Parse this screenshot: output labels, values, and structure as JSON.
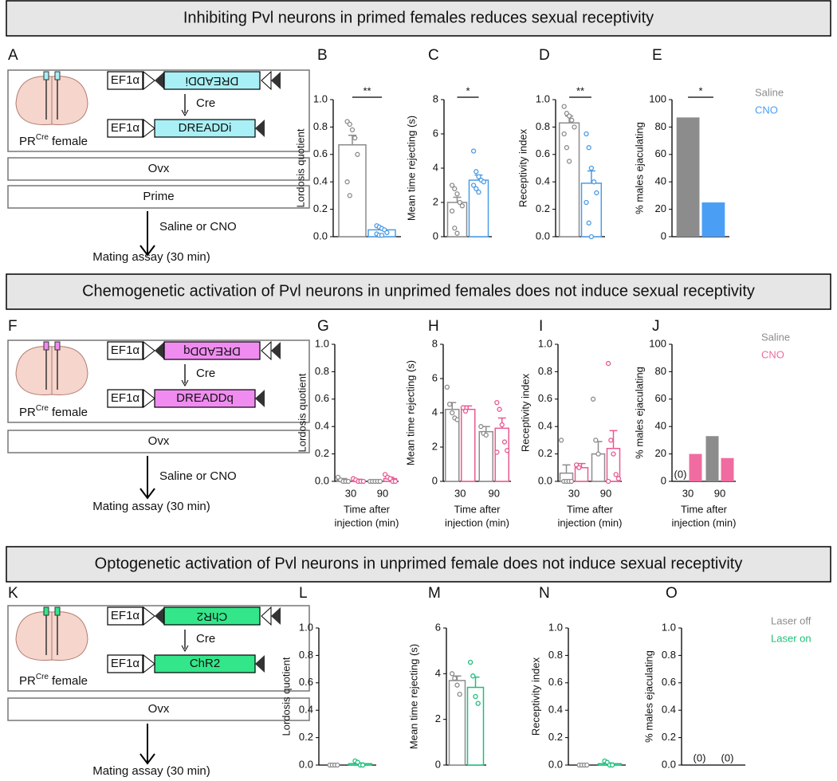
{
  "sections": [
    {
      "title": "Inhibiting Pvl neurons in primed females reduces sexual receptivity",
      "panel_labels": [
        "A",
        "B",
        "C",
        "D",
        "E"
      ],
      "schematic": {
        "promoter": "EF1α",
        "construct": "DREADDi",
        "color": "#a8f0f5",
        "recombinase": "Cre",
        "mouse": "PR",
        "mouse_sup": "Cre",
        "mouse_suffix": "female",
        "steps": [
          "Ovx",
          "Prime"
        ],
        "treatment": "Saline or CNO",
        "assay": "Mating assay (30 min)"
      }
    },
    {
      "title": "Chemogenetic activation of Pvl neurons in unprimed females does not induce sexual receptivity",
      "panel_labels": [
        "F",
        "G",
        "H",
        "I",
        "J"
      ],
      "schematic": {
        "promoter": "EF1α",
        "construct": "DREADDq",
        "color": "#f08cf0",
        "recombinase": "Cre",
        "mouse": "PR",
        "mouse_sup": "Cre",
        "mouse_suffix": "female",
        "steps": [
          "Ovx"
        ],
        "treatment": "Saline or CNO",
        "assay": "Mating assay (30 min)"
      }
    },
    {
      "title": "Optogenetic activation of Pvl neurons in unprimed female does not induce sexual receptivity",
      "panel_labels": [
        "K",
        "L",
        "M",
        "N",
        "O"
      ],
      "schematic": {
        "promoter": "EF1α",
        "construct": "ChR2",
        "color": "#33e68a",
        "recombinase": "Cre",
        "mouse": "PR",
        "mouse_sup": "Cre",
        "mouse_suffix": "female",
        "steps": [
          "Ovx"
        ],
        "assay": "Mating assay (30 min)"
      }
    }
  ],
  "chart_data": [
    {
      "type": "bar",
      "ylabel": "Lordosis quotient",
      "ylim": [
        0,
        1
      ],
      "yticks": [
        {
          "value": 0,
          "label": "0.0"
        },
        0.2,
        0.4,
        0.6,
        0.8,
        {
          "value": 1,
          "label": "1.0"
        }
      ],
      "bar_style": "outline",
      "significance": "**",
      "series": [
        {
          "color": "#8c8c8c",
          "values": [
            0.67
          ],
          "errors": [
            0.07
          ],
          "points": [
            [
              0.84,
              0.82,
              0.78,
              0.72,
              0.6,
              0.4,
              0.3
            ]
          ]
        },
        {
          "color": "#4d9be6",
          "values": [
            0.05
          ],
          "errors": [
            0.01
          ],
          "points": [
            [
              0.08,
              0.07,
              0.06,
              0.05,
              0.03,
              0.02,
              0.01,
              0.01
            ]
          ]
        }
      ]
    },
    {
      "type": "bar",
      "ylabel": "Mean time rejecting (s)",
      "ylim": [
        0,
        8
      ],
      "yticks": [
        0,
        2,
        4,
        6,
        8
      ],
      "bar_style": "outline",
      "significance": "*",
      "series": [
        {
          "color": "#8c8c8c",
          "values": [
            2.0
          ],
          "errors": [
            0.3
          ],
          "points": [
            [
              3.0,
              2.8,
              2.5,
              2.0,
              1.8,
              1.5,
              0.5,
              0.2
            ]
          ]
        },
        {
          "color": "#4d9be6",
          "values": [
            3.3
          ],
          "errors": [
            0.3
          ],
          "points": [
            [
              5.0,
              3.8,
              3.5,
              3.3,
              3.2,
              3.0,
              2.8,
              2.6
            ]
          ]
        }
      ]
    },
    {
      "type": "bar",
      "ylabel": "Receptivity index",
      "ylim": [
        0,
        1
      ],
      "yticks": [
        {
          "value": 0,
          "label": "0.0"
        },
        0.2,
        0.4,
        0.6,
        0.8,
        {
          "value": 1,
          "label": "1.0"
        }
      ],
      "bar_style": "outline",
      "significance": "**",
      "series": [
        {
          "color": "#8c8c8c",
          "values": [
            0.83
          ],
          "errors": [
            0.05
          ],
          "points": [
            [
              0.95,
              0.9,
              0.88,
              0.85,
              0.8,
              0.75,
              0.65,
              0.55
            ]
          ]
        },
        {
          "color": "#4d9be6",
          "values": [
            0.39
          ],
          "errors": [
            0.09
          ],
          "points": [
            [
              0.75,
              0.65,
              0.5,
              0.4,
              0.32,
              0.25,
              0.1,
              0.0
            ]
          ]
        }
      ]
    },
    {
      "type": "bar",
      "ylabel": "% males ejaculating",
      "ylim": [
        0,
        100
      ],
      "yticks": [
        0,
        20,
        40,
        60,
        80,
        100
      ],
      "bar_style": "filled",
      "significance": "*",
      "series": [
        {
          "name": "Saline",
          "color": "#8c8c8c",
          "values": [
            87
          ]
        },
        {
          "name": "CNO",
          "color": "#4a9ff5",
          "values": [
            25
          ]
        }
      ]
    },
    {
      "type": "bar",
      "ylabel": "Lordosis quotient",
      "ylim": [
        0,
        1
      ],
      "yticks": [
        {
          "value": 0,
          "label": "0.0"
        },
        0.2,
        0.4,
        0.6,
        0.8,
        {
          "value": 1,
          "label": "1.0"
        }
      ],
      "bar_style": "outline",
      "categories": [
        "30",
        "90"
      ],
      "xlabel": [
        "Time after",
        "injection (min)"
      ],
      "series": [
        {
          "color": "#8c8c8c",
          "values": [
            0.01,
            0.0
          ],
          "errors": [
            0.01,
            0
          ],
          "points": [
            [
              0.03,
              0.01,
              0,
              0,
              0
            ],
            [
              0,
              0,
              0,
              0,
              0
            ]
          ]
        },
        {
          "color": "#e85a92",
          "values": [
            0.01,
            0.02
          ],
          "errors": [
            0.005,
            0.01
          ],
          "points": [
            [
              0.02,
              0.01,
              0,
              0,
              0
            ],
            [
              0.05,
              0.03,
              0.02,
              0,
              0
            ]
          ]
        }
      ]
    },
    {
      "type": "bar",
      "ylabel": "Mean time rejecting (s)",
      "ylim": [
        0,
        8
      ],
      "yticks": [
        0,
        2,
        4,
        6,
        8
      ],
      "bar_style": "outline",
      "categories": [
        "30",
        "90"
      ],
      "xlabel": [
        "Time after",
        "injection (min)"
      ],
      "series": [
        {
          "color": "#8c8c8c",
          "values": [
            4.2,
            2.9
          ],
          "errors": [
            0.4,
            0.3
          ],
          "points": [
            [
              5.5,
              4.5,
              4.0,
              3.7,
              3.6
            ],
            [
              3.2,
              2.8,
              2.7
            ]
          ]
        },
        {
          "color": "#e85a92",
          "values": [
            4.2,
            3.1
          ],
          "errors": [
            0.2,
            0.6
          ],
          "points": [
            [
              4.3,
              4.1
            ],
            [
              4.6,
              4.2,
              3.3,
              2.3,
              1.8,
              1.7
            ]
          ]
        }
      ]
    },
    {
      "type": "bar",
      "ylabel": "Receptivity index",
      "ylim": [
        0,
        1
      ],
      "yticks": [
        {
          "value": 0,
          "label": "0.0"
        },
        0.2,
        0.4,
        0.6,
        0.8,
        {
          "value": 1,
          "label": "1.0"
        }
      ],
      "bar_style": "outline",
      "categories": [
        "30",
        "90"
      ],
      "xlabel": [
        "Time after",
        "injection (min)"
      ],
      "series": [
        {
          "color": "#8c8c8c",
          "values": [
            0.06,
            0.2
          ],
          "errors": [
            0.06,
            0.09
          ],
          "points": [
            [
              0.3,
              0,
              0,
              0,
              0
            ],
            [
              0.6,
              0.3,
              0.2
            ]
          ]
        },
        {
          "color": "#e85a92",
          "values": [
            0.1,
            0.24
          ],
          "errors": [
            0.03,
            0.13
          ],
          "points": [
            [
              0.12,
              0.1
            ],
            [
              0.86,
              0.3,
              0.2,
              0.05,
              0.02,
              0.0
            ]
          ]
        }
      ]
    },
    {
      "type": "bar",
      "ylabel": "% males ejaculating",
      "ylim": [
        0,
        100
      ],
      "yticks": [
        0,
        20,
        40,
        60,
        80,
        100
      ],
      "bar_style": "filled",
      "categories": [
        "30",
        "90"
      ],
      "xlabel": [
        "Time after",
        "injection (min)"
      ],
      "annotations": [
        "(0)"
      ],
      "series": [
        {
          "name": "Saline",
          "color": "#8c8c8c",
          "values": [
            0,
            33
          ]
        },
        {
          "name": "CNO",
          "color": "#f06ba0",
          "values": [
            20,
            17
          ]
        }
      ]
    },
    {
      "type": "bar",
      "ylabel": "Lordosis quotient",
      "ylim": [
        0,
        1
      ],
      "yticks": [
        {
          "value": 0,
          "label": "0.0"
        },
        0.2,
        0.4,
        0.6,
        0.8,
        {
          "value": 1,
          "label": "1.0"
        }
      ],
      "bar_style": "outline",
      "series": [
        {
          "color": "#8c8c8c",
          "values": [
            0.0
          ],
          "errors": [
            0
          ],
          "points": [
            [
              0,
              0,
              0,
              0
            ]
          ]
        },
        {
          "color": "#1fbf7a",
          "values": [
            0.01
          ],
          "errors": [
            0.005
          ],
          "points": [
            [
              0.03,
              0.02,
              0,
              0
            ]
          ]
        }
      ]
    },
    {
      "type": "bar",
      "ylabel": "Mean time rejecting (s)",
      "ylim": [
        0,
        6
      ],
      "yticks": [
        0,
        2,
        4,
        6
      ],
      "bar_style": "outline",
      "series": [
        {
          "color": "#8c8c8c",
          "values": [
            3.7
          ],
          "errors": [
            0.2
          ],
          "points": [
            [
              4.0,
              3.8,
              3.5,
              3.1
            ]
          ]
        },
        {
          "color": "#1fbf7a",
          "values": [
            3.4
          ],
          "errors": [
            0.45
          ],
          "points": [
            [
              4.5,
              3.9,
              3.0,
              2.7
            ]
          ]
        }
      ]
    },
    {
      "type": "bar",
      "ylabel": "Receptivity index",
      "ylim": [
        0,
        1
      ],
      "yticks": [
        {
          "value": 0,
          "label": "0.0"
        },
        0.2,
        0.4,
        0.6,
        0.8,
        {
          "value": 1,
          "label": "1.0"
        }
      ],
      "bar_style": "outline",
      "series": [
        {
          "color": "#8c8c8c",
          "values": [
            0.0
          ],
          "errors": [
            0
          ],
          "points": [
            [
              0,
              0,
              0,
              0
            ]
          ]
        },
        {
          "color": "#1fbf7a",
          "values": [
            0.01
          ],
          "errors": [
            0.005
          ],
          "points": [
            [
              0.03,
              0.02,
              0,
              0
            ]
          ]
        }
      ]
    },
    {
      "type": "bar",
      "ylabel": "% males ejaculating",
      "ylim": [
        0,
        1
      ],
      "yticks": [
        {
          "value": 0,
          "label": "0.0"
        },
        0.2,
        0.4,
        0.6,
        0.8,
        {
          "value": 1,
          "label": "1.0"
        }
      ],
      "bar_style": "filled",
      "annotations": [
        "(0)",
        "(0)"
      ],
      "series": [
        {
          "name": "Laser off",
          "color": "#8c8c8c",
          "values": [
            0
          ]
        },
        {
          "name": "Laser on",
          "color": "#1fbf7a",
          "values": [
            0
          ]
        }
      ]
    }
  ]
}
